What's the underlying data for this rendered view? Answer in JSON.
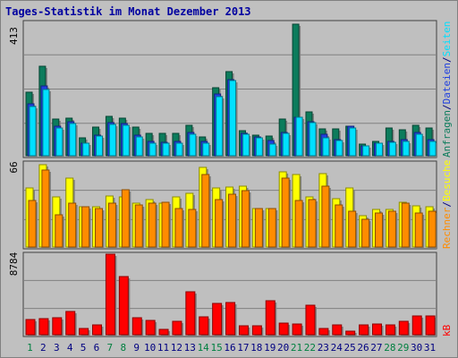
{
  "title": "Tages-Statistik im Monat Dezember 2013",
  "colors": {
    "background": "#c0c0c0",
    "plot_bg": "#bfbfbf",
    "anfragen": "#0c7c5c",
    "dateien": "#2040e0",
    "seiten": "#00e0ff",
    "besuche": "#ffff00",
    "rechner": "#ff8c00",
    "kb": "#ff0000",
    "day_weekend": "#008040",
    "day_weekday": "#000080"
  },
  "chart_data": [
    {
      "type": "bar",
      "title": "Tages-Statistik im Monat Dezember 2013",
      "categories": [
        "1",
        "2",
        "3",
        "4",
        "5",
        "6",
        "7",
        "8",
        "9",
        "10",
        "11",
        "12",
        "13",
        "14",
        "15",
        "16",
        "17",
        "18",
        "19",
        "20",
        "21",
        "22",
        "23",
        "24",
        "25",
        "26",
        "27",
        "28",
        "29",
        "30",
        "31"
      ],
      "weekend_days": [
        "1",
        "7",
        "8",
        "14",
        "15",
        "21",
        "22",
        "28",
        "29"
      ],
      "ymax_label": "413",
      "ylim": [
        0,
        413
      ],
      "right_labels": [
        {
          "text": "Anfragen",
          "color": "#0c7c5c"
        },
        {
          "text": "/",
          "color": "#000080"
        },
        {
          "text": "Dateien",
          "color": "#2040e0"
        },
        {
          "text": "/",
          "color": "#000080"
        },
        {
          "text": "Seiten",
          "color": "#00e0ff"
        }
      ],
      "series": [
        {
          "name": "Anfragen",
          "values": [
            199,
            281,
            116,
            117,
            57,
            90,
            124,
            117,
            90,
            71,
            70,
            70,
            95,
            59,
            214,
            263,
            78,
            65,
            61,
            116,
            413,
            137,
            84,
            84,
            93,
            36,
            44,
            88,
            81,
            96,
            86
          ]
        },
        {
          "name": "Dateien",
          "values": [
            162,
            218,
            93,
            108,
            40,
            66,
            103,
            100,
            65,
            46,
            42,
            46,
            72,
            45,
            195,
            239,
            71,
            60,
            47,
            72,
            121,
            106,
            68,
            51,
            94,
            32,
            39,
            45,
            50,
            74,
            51
          ]
        },
        {
          "name": "Seiten",
          "values": [
            154,
            208,
            86,
            101,
            38,
            62,
            98,
            96,
            59,
            40,
            38,
            40,
            68,
            40,
            186,
            235,
            67,
            57,
            36,
            69,
            120,
            104,
            56,
            48,
            88,
            32,
            39,
            41,
            44,
            67,
            46
          ]
        }
      ]
    },
    {
      "type": "bar",
      "ymax_label": "66",
      "ylim": [
        0,
        66
      ],
      "right_labels": [
        {
          "text": "Rechner",
          "color": "#ff8c00"
        },
        {
          "text": "/",
          "color": "#000080"
        },
        {
          "text": "Besuche",
          "color": "#ffff00"
        }
      ],
      "series": [
        {
          "name": "Besuche",
          "values": [
            47,
            66,
            40,
            55,
            32,
            32,
            41,
            40,
            35,
            38,
            35,
            40,
            43,
            64,
            47,
            48,
            49,
            31,
            31,
            60,
            58,
            40,
            59,
            39,
            47,
            25,
            30,
            30,
            36,
            33,
            32
          ]
        },
        {
          "name": "Rechner",
          "values": [
            37,
            62,
            26,
            35,
            32,
            31,
            35,
            46,
            34,
            35,
            36,
            31,
            30,
            58,
            38,
            42,
            45,
            31,
            31,
            55,
            37,
            38,
            49,
            34,
            29,
            22,
            27,
            29,
            35,
            27,
            29
          ]
        }
      ]
    },
    {
      "type": "bar",
      "ymax_label": "8784",
      "ylim": [
        0,
        8784
      ],
      "right_labels": [
        {
          "text": "kB",
          "color": "#ff0000"
        }
      ],
      "series": [
        {
          "name": "kB",
          "values": [
            1650,
            1747,
            1844,
            2523,
            679,
            1068,
            8784,
            6358,
            1844,
            1553,
            582,
            1456,
            4658,
            1941,
            3397,
            3494,
            951,
            951,
            3688,
            1262,
            1165,
            3203,
            679,
            1068,
            388,
            1068,
            1165,
            1068,
            1456,
            2038,
            2014
          ]
        }
      ]
    }
  ]
}
